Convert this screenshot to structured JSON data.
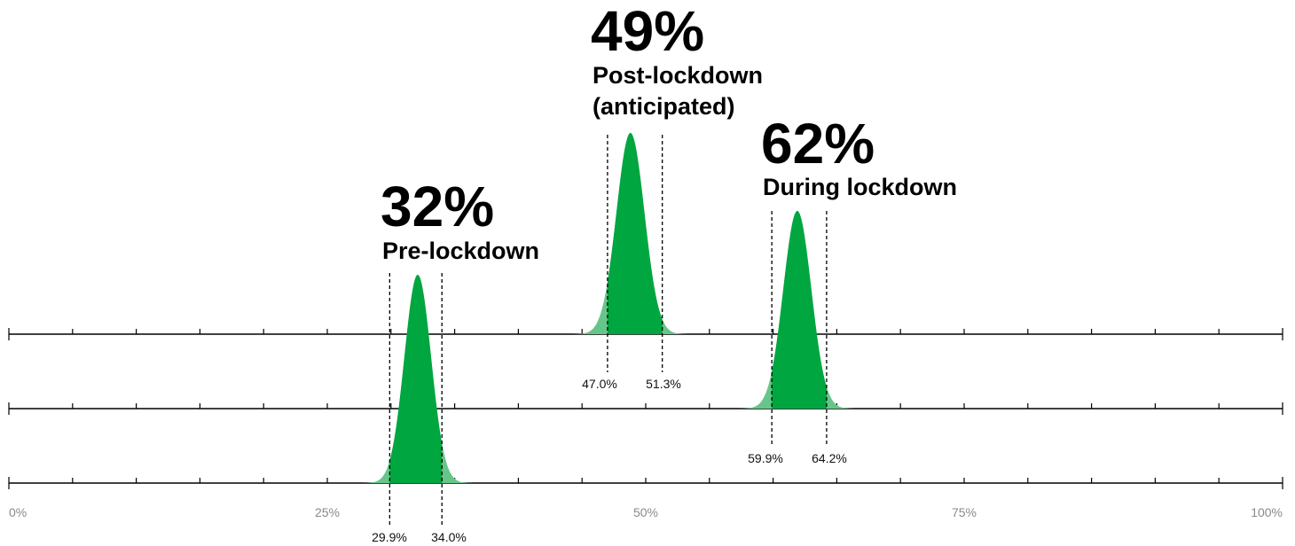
{
  "chart_data": {
    "type": "area",
    "x_unit": "%",
    "xlim": [
      0,
      100
    ],
    "x_ticks": [
      {
        "value": 0,
        "label": "0%"
      },
      {
        "value": 25,
        "label": "25%"
      },
      {
        "value": 50,
        "label": "50%"
      },
      {
        "value": 75,
        "label": "75%"
      },
      {
        "value": 100,
        "label": "100%"
      }
    ],
    "minor_tick_step": 5,
    "series": [
      {
        "key": "post",
        "value_label": "49%",
        "name_lines": [
          "Post-lockdown",
          "(anticipated)"
        ],
        "mean": 48.8,
        "ci_low": 47.0,
        "ci_high": 51.3,
        "ci_low_label": "47.0%",
        "ci_high_label": "51.3%"
      },
      {
        "key": "during",
        "value_label": "62%",
        "name_lines": [
          "During lockdown"
        ],
        "mean": 61.9,
        "ci_low": 59.9,
        "ci_high": 64.2,
        "ci_low_label": "59.9%",
        "ci_high_label": "64.2%"
      },
      {
        "key": "pre",
        "value_label": "32%",
        "name_lines": [
          "Pre-lockdown"
        ],
        "mean": 32.1,
        "ci_low": 29.9,
        "ci_high": 34.0,
        "ci_low_label": "29.9%",
        "ci_high_label": "34.0%"
      }
    ],
    "colors": {
      "ci_fill": "#00a63f",
      "tail_fill": "#66c68a",
      "axis": "#000000",
      "tick_label": "#8a8a8a"
    }
  }
}
